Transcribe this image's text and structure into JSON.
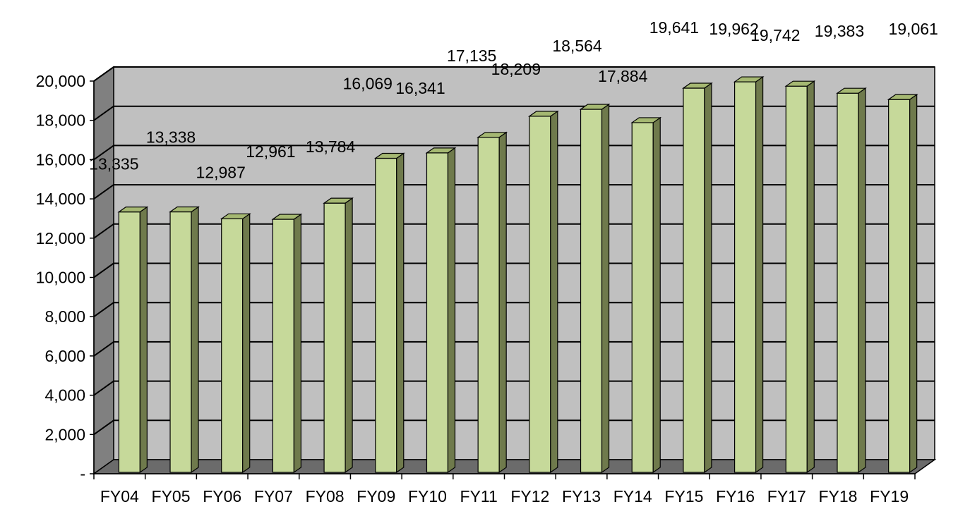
{
  "chart_data": {
    "type": "bar",
    "title": "",
    "xlabel": "",
    "ylabel": "",
    "categories": [
      "FY04",
      "FY05",
      "FY06",
      "FY07",
      "FY08",
      "FY09",
      "FY10",
      "FY11",
      "FY12",
      "FY13",
      "FY14",
      "FY15",
      "FY16",
      "FY17",
      "FY18",
      "FY19"
    ],
    "series": [
      {
        "values": [
          13335,
          13338,
          12987,
          12961,
          13784,
          16069,
          16341,
          17135,
          18209,
          18564,
          17884,
          19641,
          19962,
          19742,
          19383,
          19061
        ]
      }
    ],
    "data_labels": [
      "13,335",
      "13,338",
      "12,987",
      "12,961",
      "13,784",
      "16,069",
      "16,341",
      "17,135",
      "18,209",
      "18,564",
      "17,884",
      "19,641",
      "19,962",
      "19,742",
      "19,383",
      "19,061"
    ],
    "ylim": [
      0,
      20000
    ],
    "yticks": [
      0,
      2000,
      4000,
      6000,
      8000,
      10000,
      12000,
      14000,
      16000,
      18000,
      20000
    ],
    "ytick_labels": [
      "-",
      "2,000",
      "4,000",
      "6,000",
      "8,000",
      "10,000",
      "12,000",
      "14,000",
      "16,000",
      "18,000",
      "20,000"
    ],
    "grid": true,
    "legend": "none",
    "style": "3d-column",
    "colors": {
      "bar_front": "#c6d99a",
      "bar_side": "#6f7a4c",
      "bar_top": "#a5b872",
      "back_wall": "#c0c0c0",
      "side_wall": "#808080",
      "floor": "#6b6b6b"
    }
  }
}
